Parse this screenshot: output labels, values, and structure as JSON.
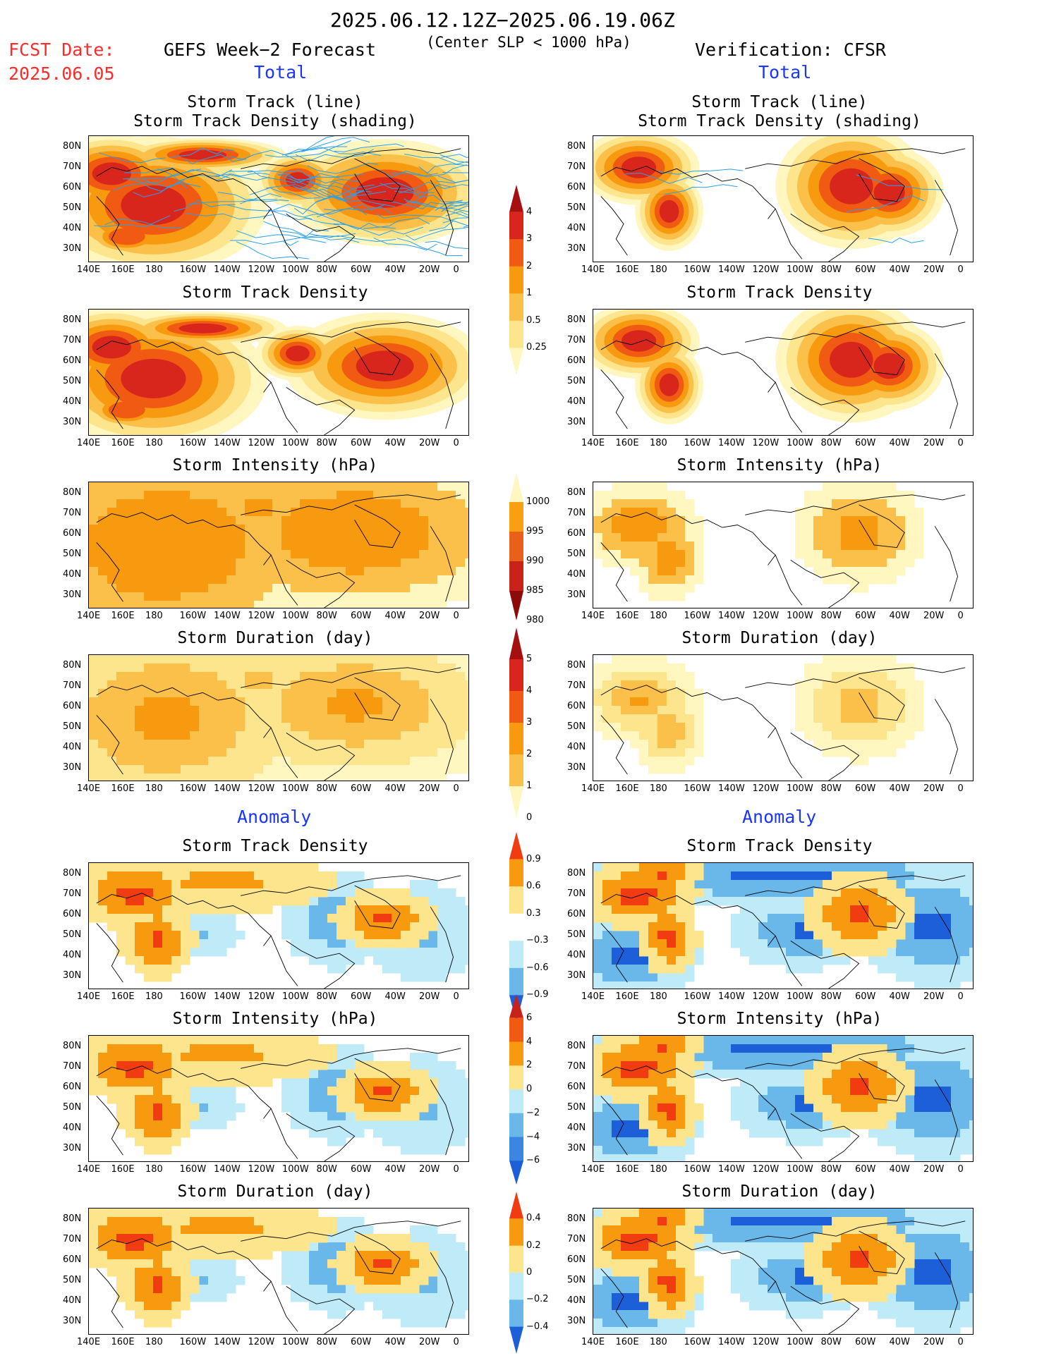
{
  "header": {
    "date_range": "2025.06.12.12Z−2025.06.19.06Z",
    "fcst_label": "FCST Date:",
    "fcst_date": "2025.06.05",
    "forecast_title": "GEFS Week−2 Forecast",
    "criterion": "(Center SLP < 1000 hPa)",
    "verification": "Verification: CFSR",
    "left_section": "Total",
    "right_section": "Total",
    "left_anomaly": "Anomaly",
    "right_anomaly": "Anomaly"
  },
  "panel_titles": {
    "track_line": "Storm Track (line)",
    "track_shading": "Storm Track Density (shading)",
    "density": "Storm Track Density",
    "intensity": "Storm Intensity (hPa)",
    "duration": "Storm Duration (day)"
  },
  "axes": {
    "lon_ticks": [
      "140E",
      "160E",
      "180",
      "160W",
      "140W",
      "120W",
      "100W",
      "80W",
      "60W",
      "40W",
      "20W",
      "0"
    ],
    "lat_ticks": [
      "80N",
      "70N",
      "60N",
      "50N",
      "40N",
      "30N"
    ]
  },
  "colorbars": {
    "total_density": {
      "labels": [
        "4",
        "3",
        "2",
        "1",
        "0.5",
        "0.25"
      ],
      "colors": [
        "#a50f0f",
        "#d9261c",
        "#f05a12",
        "#f89a10",
        "#fbc04a",
        "#fde58e",
        "#fff6c0"
      ]
    },
    "total_intensity": {
      "labels": [
        "1000",
        "995",
        "990",
        "985",
        "980"
      ],
      "colors": [
        "#fff6c0",
        "#f8a010",
        "#e8601a",
        "#c8221a",
        "#8c0a0a"
      ]
    },
    "total_duration": {
      "labels": [
        "5",
        "4",
        "3",
        "2",
        "1",
        "0"
      ],
      "colors": [
        "#a50f0f",
        "#d9261c",
        "#f05a12",
        "#f89a10",
        "#fbc04a",
        "#fff6c0"
      ]
    },
    "anom_density": {
      "labels": [
        "0.9",
        "0.6",
        "0.3",
        "−0.3",
        "−0.6",
        "−0.9"
      ],
      "colors": [
        "#f03c10",
        "#f89a10",
        "#fde58e",
        "#ffffff",
        "#bfeaf8",
        "#6ab8ea",
        "#1d5fd8"
      ]
    },
    "anom_intensity": {
      "labels": [
        "6",
        "4",
        "2",
        "0",
        "−2",
        "−4",
        "−6"
      ],
      "colors": [
        "#c8221a",
        "#f05a12",
        "#f89a10",
        "#fde58e",
        "#bfeaf8",
        "#6ab8ea",
        "#3a86e0",
        "#1d5fd8"
      ]
    },
    "anom_duration": {
      "labels": [
        "0.4",
        "0.2",
        "0",
        "−0.2",
        "−0.4"
      ],
      "colors": [
        "#f03c10",
        "#f89a10",
        "#fde58e",
        "#bfeaf8",
        "#6ab8ea",
        "#1d5fd8"
      ]
    }
  }
}
